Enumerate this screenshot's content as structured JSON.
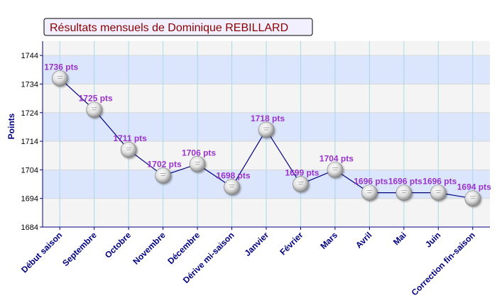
{
  "chart_data": {
    "type": "line",
    "title": "Résultats mensuels de Dominique REBILLARD",
    "ylabel": "Points",
    "xlabel": "",
    "ylim": [
      1684,
      1749
    ],
    "yticks": [
      1684,
      1694,
      1704,
      1714,
      1724,
      1734,
      1744
    ],
    "grid": true,
    "categories": [
      "Début saison",
      "Septembre",
      "Octobre",
      "Novembre",
      "Décembre",
      "Dérive mi-saison",
      "Janvier",
      "Février",
      "Mars",
      "Avril",
      "Mai",
      "Juin",
      "Correction fin-saison"
    ],
    "values": [
      1736,
      1725,
      1711,
      1702,
      1706,
      1698,
      1718,
      1699,
      1704,
      1696,
      1696,
      1696,
      1694
    ],
    "point_labels": [
      "1736 pts",
      "1725 pts",
      "1711 pts",
      "1702 pts",
      "1706 pts",
      "1698 pts",
      "1718 pts",
      "1699 pts",
      "1704 pts",
      "1696 pts",
      "1696 pts",
      "1696 pts",
      "1694 pts"
    ]
  },
  "colors": {
    "title_text": "#8b0000",
    "title_bg": "#f2f0ff",
    "band_blue": "#dbe5fb",
    "band_grey": "#f4f4f4",
    "axis_text": "#000080",
    "point_label": "#9933cc",
    "line": "#00007f",
    "vgrid": "#a8d8e8"
  }
}
